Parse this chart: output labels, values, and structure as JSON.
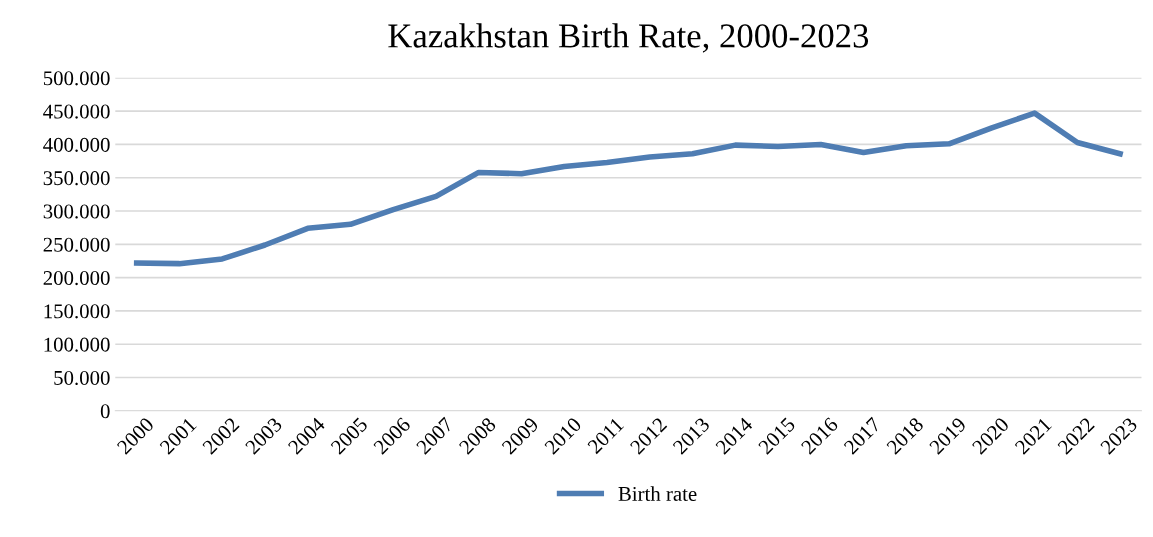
{
  "chart_data": {
    "type": "line",
    "title": "Kazakhstan Birth Rate, 2000-2023",
    "categories": [
      "2000",
      "2001",
      "2002",
      "2003",
      "2004",
      "2005",
      "2006",
      "2007",
      "2008",
      "2009",
      "2010",
      "2011",
      "2012",
      "2013",
      "2014",
      "2015",
      "2016",
      "2017",
      "2018",
      "2019",
      "2020",
      "2021",
      "2022",
      "2023"
    ],
    "series": [
      {
        "name": "Birth rate",
        "color": "#4f7db3",
        "values": [
          222000,
          221000,
          228000,
          249000,
          274000,
          280000,
          302000,
          322000,
          358000,
          356000,
          367000,
          373000,
          381000,
          386000,
          399000,
          397000,
          400000,
          388000,
          398000,
          401000,
          425000,
          447000,
          403000,
          386000
        ]
      }
    ],
    "ylim": [
      0,
      500000
    ],
    "yticks": [
      0,
      {
        "value": 50000,
        "label": "50.000"
      },
      {
        "value": 100000,
        "label": "100.000"
      },
      {
        "value": 150000,
        "label": "150.000"
      },
      {
        "value": 200000,
        "label": "200.000"
      },
      {
        "value": 250000,
        "label": "250.000"
      },
      {
        "value": 300000,
        "label": "300.000"
      },
      {
        "value": 350000,
        "label": "350.000"
      },
      {
        "value": 400000,
        "label": "400.000"
      },
      {
        "value": 450000,
        "label": "450.000"
      },
      {
        "value": 500000,
        "label": "500.000"
      }
    ],
    "grid": "y",
    "legend": "bottom",
    "marker": "none",
    "line_style": "solid"
  }
}
